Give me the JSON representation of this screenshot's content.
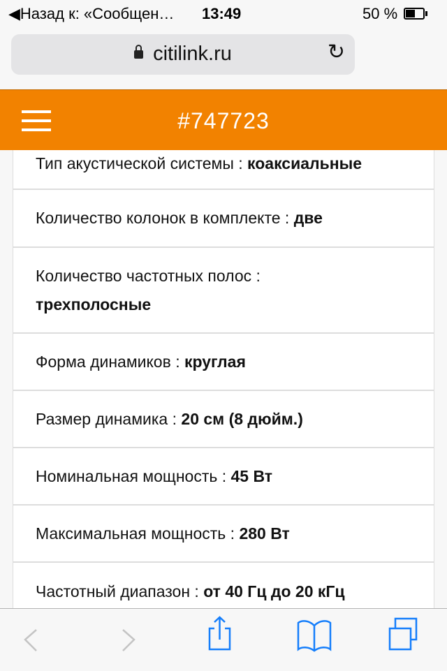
{
  "status_bar": {
    "back_label": "◀Назад к: «Сообщен…",
    "time": "13:49",
    "battery_percent": "50 %",
    "battery_level": 0.5
  },
  "address_bar": {
    "url": "citilink.ru"
  },
  "header": {
    "title": "#747723",
    "color": "#f28200"
  },
  "specs": [
    {
      "label": "Тип акустической системы : ",
      "value": "коаксиальные"
    },
    {
      "label": "Количество колонок в комплекте : ",
      "value": "две"
    },
    {
      "label": "Количество частотных полос : ",
      "value": "трехполосные"
    },
    {
      "label": "Форма динамиков : ",
      "value": "круглая"
    },
    {
      "label": "Размер динамика : ",
      "value": "20 см (8 дюйм.)"
    },
    {
      "label": "Номинальная мощность : ",
      "value": "45 Вт"
    },
    {
      "label": "Максимальная мощность : ",
      "value": "280 Вт"
    },
    {
      "label": "Частотный диапазон : ",
      "value": "от 40 Гц до 20 кГц"
    }
  ],
  "toolbar": {
    "icons": [
      "back-icon",
      "forward-icon",
      "share-icon",
      "bookmarks-icon",
      "tabs-icon"
    ],
    "accent": "#157efb"
  }
}
